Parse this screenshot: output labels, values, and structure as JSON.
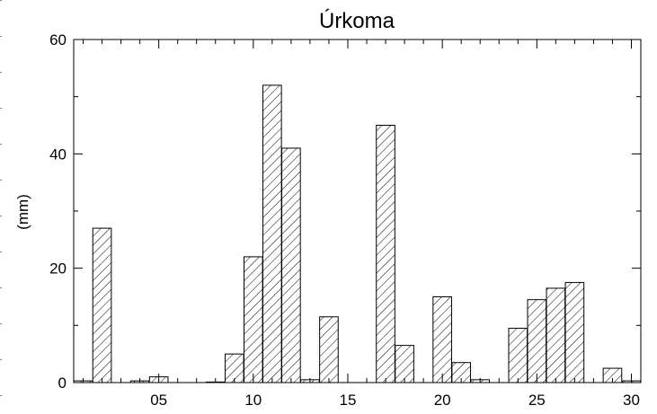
{
  "chart_data": {
    "type": "bar",
    "title": "Úrkoma",
    "xlabel": "",
    "ylabel": "(mm)",
    "xlim": [
      0.5,
      30.5
    ],
    "ylim": [
      0,
      60
    ],
    "x_tick_labels": [
      "05",
      "10",
      "15",
      "20",
      "25",
      "30"
    ],
    "x_tick_values": [
      5,
      10,
      15,
      20,
      25,
      30
    ],
    "y_tick_labels": [
      "0",
      "20",
      "40",
      "60"
    ],
    "y_tick_values": [
      0,
      20,
      40,
      60
    ],
    "grid": false,
    "legend": "none",
    "bar_fill": "diagonal-hatch",
    "bar_color": "#000000",
    "x": [
      1,
      2,
      3,
      4,
      5,
      6,
      7,
      8,
      9,
      10,
      11,
      12,
      13,
      14,
      15,
      16,
      17,
      18,
      19,
      20,
      21,
      22,
      23,
      24,
      25,
      26,
      27,
      28,
      29,
      30
    ],
    "values": [
      0.3,
      27,
      0,
      0.3,
      1,
      0,
      0,
      0.1,
      5,
      22,
      52,
      41,
      0.5,
      11.5,
      0,
      0,
      45,
      6.5,
      0,
      15,
      3.5,
      0.5,
      0,
      9.5,
      14.5,
      16.5,
      17.5,
      0,
      2.5,
      0.3
    ]
  }
}
